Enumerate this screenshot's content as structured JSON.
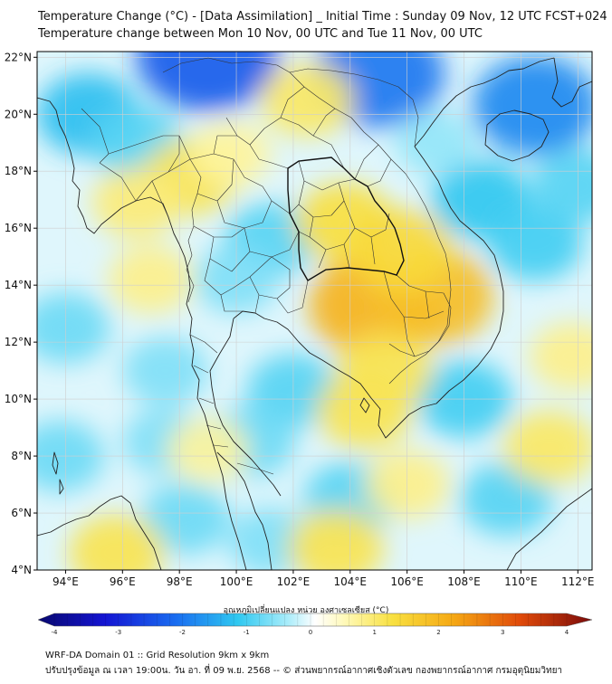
{
  "title": {
    "line1": "Temperature Change (°C) - [Data Assimilation] _ Initial Time : Sunday 09 Nov, 12 UTC FCST+024",
    "line2": "Temperature change between Mon 10 Nov, 00 UTC and Tue 11 Nov, 00 UTC"
  },
  "axes": {
    "lat_labels": [
      "22°N",
      "20°N",
      "18°N",
      "16°N",
      "14°N",
      "12°N",
      "10°N",
      "8°N",
      "6°N",
      "4°N"
    ],
    "lat_values": [
      22,
      20,
      18,
      16,
      14,
      12,
      10,
      8,
      6,
      4
    ],
    "lon_labels": [
      "94°E",
      "96°E",
      "98°E",
      "100°E",
      "102°E",
      "104°E",
      "106°E",
      "108°E",
      "110°E",
      "112°E"
    ],
    "lon_values": [
      94,
      96,
      98,
      100,
      102,
      104,
      106,
      108,
      110,
      112
    ],
    "lon_range": [
      93,
      112.5
    ],
    "lat_range": [
      4,
      22.2
    ]
  },
  "colorbar": {
    "title": "อุณหภูมิเปลี่ยนแปลง หน่วย องศาเซลเซียส (°C)",
    "tick_labels": [
      "-4",
      "-3",
      "-2",
      "-1",
      "0",
      "1",
      "2",
      "3",
      "4"
    ],
    "tick_values": [
      -4,
      -3,
      -2,
      -1,
      0,
      1,
      2,
      3,
      4
    ],
    "range": [
      -4,
      4
    ]
  },
  "field": {
    "warm_centers": [
      {
        "lon": 104.8,
        "lat": 13.3,
        "value": 1.8
      },
      {
        "lon": 106.9,
        "lat": 13.6,
        "value": 1.6
      },
      {
        "lon": 103.8,
        "lat": 16.2,
        "value": 1.0
      },
      {
        "lon": 105.8,
        "lat": 15.2,
        "value": 1.1
      },
      {
        "lon": 98.4,
        "lat": 17.8,
        "value": 0.9
      },
      {
        "lon": 96.5,
        "lat": 16.9,
        "value": 0.7
      },
      {
        "lon": 102.5,
        "lat": 20.5,
        "value": 0.8
      },
      {
        "lon": 105.2,
        "lat": 11.0,
        "value": 0.9
      },
      {
        "lon": 104.5,
        "lat": 9.6,
        "value": 0.9
      },
      {
        "lon": 97.0,
        "lat": 14.2,
        "value": 0.6
      },
      {
        "lon": 95.8,
        "lat": 4.6,
        "value": 0.9
      },
      {
        "lon": 103.5,
        "lat": 4.8,
        "value": 0.9
      },
      {
        "lon": 111.0,
        "lat": 8.3,
        "value": 0.8
      },
      {
        "lon": 111.8,
        "lat": 11.5,
        "value": 0.6
      },
      {
        "lon": 106.0,
        "lat": 7.0,
        "value": 0.6
      },
      {
        "lon": 99.0,
        "lat": 8.2,
        "value": 0.5
      },
      {
        "lon": 99.8,
        "lat": 18.6,
        "value": 0.5
      }
    ],
    "cool_centers": [
      {
        "lon": 99.0,
        "lat": 22.1,
        "value": -2.2
      },
      {
        "lon": 105.0,
        "lat": 21.4,
        "value": -1.9
      },
      {
        "lon": 110.5,
        "lat": 20.3,
        "value": -1.7
      },
      {
        "lon": 94.8,
        "lat": 20.0,
        "value": -1.1
      },
      {
        "lon": 96.5,
        "lat": 19.0,
        "value": -0.8
      },
      {
        "lon": 108.6,
        "lat": 17.0,
        "value": -1.0
      },
      {
        "lon": 110.5,
        "lat": 15.5,
        "value": -0.9
      },
      {
        "lon": 101.2,
        "lat": 15.6,
        "value": -0.8
      },
      {
        "lon": 100.0,
        "lat": 14.2,
        "value": -0.6
      },
      {
        "lon": 94.0,
        "lat": 12.5,
        "value": -0.7
      },
      {
        "lon": 97.5,
        "lat": 11.0,
        "value": -0.6
      },
      {
        "lon": 102.0,
        "lat": 10.3,
        "value": -0.8
      },
      {
        "lon": 100.5,
        "lat": 8.5,
        "value": -0.7
      },
      {
        "lon": 98.2,
        "lat": 5.8,
        "value": -0.7
      },
      {
        "lon": 104.0,
        "lat": 6.5,
        "value": -0.8
      },
      {
        "lon": 108.0,
        "lat": 10.0,
        "value": -0.9
      },
      {
        "lon": 109.5,
        "lat": 6.5,
        "value": -0.8
      },
      {
        "lon": 93.8,
        "lat": 8.0,
        "value": -0.7
      },
      {
        "lon": 101.2,
        "lat": 5.0,
        "value": -0.6
      },
      {
        "lon": 112.0,
        "lat": 17.5,
        "value": -0.8
      },
      {
        "lon": 107.0,
        "lat": 19.0,
        "value": -0.5
      },
      {
        "lon": 97.5,
        "lat": 8.5,
        "value": -0.6
      }
    ]
  },
  "colors": {
    "frame": "#000000",
    "grid": "#cfcfcf",
    "coast": "#222222",
    "border": "#333333"
  },
  "footer": {
    "line1": "WRF-DA Domain 01 :: Grid Resolution 9km x 9km",
    "line2": "ปรับปรุงข้อมูล ณ เวลา 19:00น. วัน อา. ที่ 09 พ.ย. 2568 -- © ส่วนพยากรณ์อากาศเชิงตัวเลข กองพยากรณ์อากาศ กรมอุตุนิยมวิทยา"
  }
}
